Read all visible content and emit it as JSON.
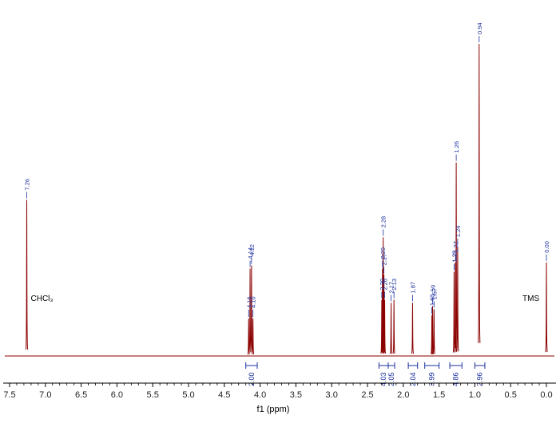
{
  "chart_data": {
    "type": "line",
    "xlabel": "f1 (ppm)",
    "xlim": [
      7.5,
      0.0
    ],
    "x_reversed": true,
    "x_ticks": [
      "7.5",
      "7.0",
      "6.5",
      "6.0",
      "5.5",
      "5.0",
      "4.5",
      "4.0",
      "3.5",
      "3.0",
      "2.5",
      "2.0",
      "1.5",
      "1.0",
      "0.5",
      "0.0"
    ],
    "line_color": "#8b0000",
    "label_color": "#1b2f9e",
    "grid": false,
    "peaks": [
      {
        "ppm": 7.26,
        "height": 0.5
      },
      {
        "ppm": 4.16,
        "height": 0.12
      },
      {
        "ppm": 4.14,
        "height": 0.28
      },
      {
        "ppm": 4.12,
        "height": 0.29
      },
      {
        "ppm": 4.1,
        "height": 0.12
      },
      {
        "ppm": 2.3,
        "height": 0.18
      },
      {
        "ppm": 2.29,
        "height": 0.28
      },
      {
        "ppm": 2.28,
        "height": 0.38
      },
      {
        "ppm": 2.27,
        "height": 0.26
      },
      {
        "ppm": 2.26,
        "height": 0.18
      },
      {
        "ppm": 2.17,
        "height": 0.17
      },
      {
        "ppm": 2.13,
        "height": 0.18
      },
      {
        "ppm": 1.87,
        "height": 0.17
      },
      {
        "ppm": 1.6,
        "height": 0.13
      },
      {
        "ppm": 1.59,
        "height": 0.16
      },
      {
        "ppm": 1.57,
        "height": 0.15
      },
      {
        "ppm": 1.29,
        "height": 0.27
      },
      {
        "ppm": 1.27,
        "height": 0.3
      },
      {
        "ppm": 1.26,
        "height": 0.62
      },
      {
        "ppm": 1.24,
        "height": 0.35
      },
      {
        "ppm": 0.94,
        "height": 1.0
      },
      {
        "ppm": 0.0,
        "height": 0.3
      }
    ],
    "peak_labels": [
      {
        "text": "7.26",
        "ppm": 7.26
      },
      {
        "text": "4.16",
        "ppm": 4.16
      },
      {
        "text": "4.14",
        "ppm": 4.14
      },
      {
        "text": "4.12",
        "ppm": 4.12
      },
      {
        "text": "4.10",
        "ppm": 4.1
      },
      {
        "text": "2.30",
        "ppm": 2.3
      },
      {
        "text": "2.29",
        "ppm": 2.29
      },
      {
        "text": "2.28",
        "ppm": 2.28
      },
      {
        "text": "2.27",
        "ppm": 2.27
      },
      {
        "text": "2.26",
        "ppm": 2.26
      },
      {
        "text": "2.17",
        "ppm": 2.17
      },
      {
        "text": "2.13",
        "ppm": 2.13
      },
      {
        "text": "1.87",
        "ppm": 1.87
      },
      {
        "text": "1.60",
        "ppm": 1.6
      },
      {
        "text": "1.59",
        "ppm": 1.59
      },
      {
        "text": "1.57",
        "ppm": 1.57
      },
      {
        "text": "1.29",
        "ppm": 1.29
      },
      {
        "text": "1.29",
        "ppm": 1.29
      },
      {
        "text": "1.27",
        "ppm": 1.27
      },
      {
        "text": "1.26",
        "ppm": 1.26
      },
      {
        "text": "1.24",
        "ppm": 1.24
      },
      {
        "text": "0.94",
        "ppm": 0.94
      },
      {
        "text": "0.00",
        "ppm": 0.0
      }
    ],
    "integrals": [
      {
        "value": "2.00",
        "from": 4.2,
        "to": 4.04
      },
      {
        "value": "4.03",
        "from": 2.34,
        "to": 2.21
      },
      {
        "value": "2.05",
        "from": 2.21,
        "to": 2.12
      },
      {
        "value": "2.04",
        "from": 1.93,
        "to": 1.8
      },
      {
        "value": "3.99",
        "from": 1.7,
        "to": 1.5
      },
      {
        "value": "4.86",
        "from": 1.35,
        "to": 1.18
      },
      {
        "value": "2.96",
        "from": 1.0,
        "to": 0.86
      }
    ],
    "annotations": [
      {
        "text": "CHCl₃",
        "ppm": 7.26
      },
      {
        "text": "TMS",
        "ppm": 0.0
      }
    ]
  }
}
